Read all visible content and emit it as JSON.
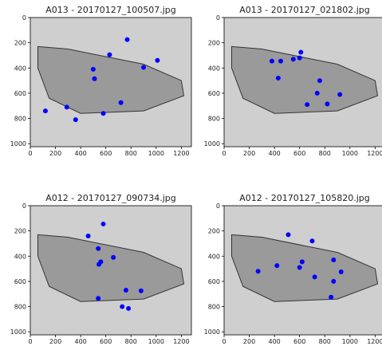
{
  "chart_data": [
    {
      "type": "scatter",
      "title": "A013 - 20170127_100507.jpg",
      "color": "#0000ff",
      "x": [
        770,
        630,
        1010,
        900,
        500,
        510,
        720,
        290,
        120,
        580,
        360
      ],
      "y": [
        175,
        295,
        340,
        395,
        410,
        485,
        675,
        710,
        740,
        760,
        810
      ],
      "xlim": [
        0,
        1280
      ],
      "ylim": [
        1024,
        0
      ],
      "xticks": [
        0,
        200,
        400,
        600,
        800,
        1000,
        1200
      ],
      "yticks": [
        0,
        200,
        400,
        600,
        800,
        1000
      ]
    },
    {
      "type": "scatter",
      "title": "A013 - 20170127_021802.jpg",
      "color": "#0000ff",
      "x": [
        380,
        450,
        550,
        600,
        610,
        430,
        760,
        740,
        920,
        660,
        820
      ],
      "y": [
        345,
        345,
        330,
        320,
        275,
        480,
        500,
        600,
        610,
        690,
        685
      ],
      "xlim": [
        0,
        1280
      ],
      "ylim": [
        1024,
        0
      ],
      "xticks": [
        0,
        200,
        400,
        600,
        800,
        1000,
        1200
      ],
      "yticks": [
        0,
        200,
        400,
        600,
        800,
        1000
      ]
    },
    {
      "type": "scatter",
      "title": "A012 - 20170127_090734.jpg",
      "color": "#0000ff",
      "x": [
        580,
        460,
        540,
        660,
        560,
        545,
        760,
        880,
        540,
        730,
        780
      ],
      "y": [
        145,
        240,
        340,
        410,
        445,
        465,
        670,
        675,
        735,
        800,
        815
      ],
      "xlim": [
        0,
        1280
      ],
      "ylim": [
        1024,
        0
      ],
      "xticks": [
        0,
        200,
        400,
        600,
        800,
        1000,
        1200
      ],
      "yticks": [
        0,
        200,
        400,
        600,
        800,
        1000
      ]
    },
    {
      "type": "scatter",
      "title": "A012 - 20170127_105820.jpg",
      "color": "#0000ff",
      "x": [
        510,
        700,
        420,
        620,
        600,
        870,
        270,
        930,
        720,
        870,
        850
      ],
      "y": [
        230,
        280,
        475,
        445,
        490,
        430,
        520,
        525,
        565,
        600,
        725
      ],
      "xlim": [
        0,
        1280
      ],
      "ylim": [
        1024,
        0
      ],
      "xticks": [
        0,
        200,
        400,
        600,
        800,
        1000,
        1200
      ],
      "yticks": [
        0,
        200,
        400,
        600,
        800,
        1000
      ]
    }
  ]
}
